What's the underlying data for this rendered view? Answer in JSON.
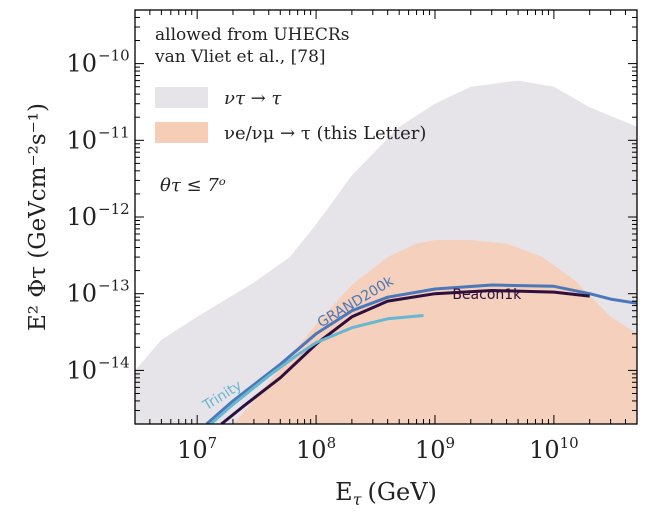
{
  "chart_data": {
    "type": "area",
    "xlabel": "E",
    "xlabel_sub": "τ",
    "xlabel_unit": "(GeV)",
    "ylabel": "E² Φτ (GeVcm⁻²s⁻¹)",
    "x_scale": "log",
    "y_scale": "log",
    "xlim": [
      3000000,
      50000000000
    ],
    "ylim": [
      2e-15,
      5e-10
    ],
    "x_ticks": [
      {
        "value": 10000000,
        "mant": "10",
        "exp": "7"
      },
      {
        "value": 100000000,
        "mant": "10",
        "exp": "8"
      },
      {
        "value": 1000000000,
        "mant": "10",
        "exp": "9"
      },
      {
        "value": 10000000000,
        "mant": "10",
        "exp": "10"
      }
    ],
    "y_ticks": [
      {
        "value": 1e-14,
        "mant": "10",
        "exp": "−14"
      },
      {
        "value": 1e-13,
        "mant": "10",
        "exp": "−13"
      },
      {
        "value": 1e-12,
        "mant": "10",
        "exp": "−12"
      },
      {
        "value": 1e-11,
        "mant": "10",
        "exp": "−11"
      },
      {
        "value": 1e-10,
        "mant": "10",
        "exp": "−10"
      }
    ],
    "annotations": {
      "line1": "allowed from UHECRs",
      "line2": "van Vliet et al., [78]",
      "theta": "θτ ≤ 7ᵒ"
    },
    "legend": [
      {
        "label": "ντ → τ",
        "color": "#e6e4e9"
      },
      {
        "label": "νe/νμ → τ (this Letter)",
        "color": "#f6cdb7"
      }
    ],
    "bands": [
      {
        "name": "ντ → τ",
        "color": "#e6e4e9",
        "upper": [
          [
            3000000,
            1e-14
          ],
          [
            5000000,
            2.5e-14
          ],
          [
            10000000,
            5e-14
          ],
          [
            30000000,
            1.4e-13
          ],
          [
            60000000,
            3e-13
          ],
          [
            100000000,
            8e-13
          ],
          [
            200000000,
            3.5e-12
          ],
          [
            500000000,
            1.5e-11
          ],
          [
            1000000000,
            3e-11
          ],
          [
            2000000000,
            5e-11
          ],
          [
            5000000000,
            6e-11
          ],
          [
            10000000000,
            5e-11
          ],
          [
            20000000000,
            2.7e-11
          ],
          [
            50000000000,
            1.5e-11
          ]
        ],
        "lower": [
          [
            3000000,
            2e-15
          ],
          [
            50000000000,
            2e-15
          ]
        ]
      },
      {
        "name": "νe/νμ → τ (this Letter)",
        "color": "#f6cdb7",
        "upper": [
          [
            20000000,
            2e-15
          ],
          [
            30000000,
            4e-15
          ],
          [
            60000000,
            1.5e-14
          ],
          [
            100000000,
            4e-14
          ],
          [
            200000000,
            1.3e-13
          ],
          [
            400000000,
            3e-13
          ],
          [
            700000000,
            4.5e-13
          ],
          [
            1000000000,
            5e-13
          ],
          [
            2000000000,
            5e-13
          ],
          [
            4000000000,
            4.5e-13
          ],
          [
            8000000000,
            3e-13
          ],
          [
            15000000000,
            1.5e-13
          ],
          [
            30000000000,
            5e-14
          ],
          [
            50000000000,
            3e-14
          ]
        ],
        "lower": [
          [
            20000000,
            2e-15
          ],
          [
            50000000000,
            2e-15
          ]
        ]
      }
    ],
    "series": [
      {
        "name": "GRAND200k",
        "color": "#4a78b8",
        "label_x": 110000000,
        "label_y": 3.6e-14,
        "label_rot": -31,
        "points": [
          [
            12000000,
            2e-15
          ],
          [
            20000000,
            4e-15
          ],
          [
            50000000,
            1.2e-14
          ],
          [
            100000000,
            3e-14
          ],
          [
            200000000,
            6e-14
          ],
          [
            400000000,
            9e-14
          ],
          [
            1000000000,
            1.15e-13
          ],
          [
            3000000000,
            1.3e-13
          ],
          [
            10000000000,
            1.25e-13
          ],
          [
            20000000000,
            1e-13
          ],
          [
            30000000000,
            8.5e-14
          ],
          [
            50000000000,
            7.5e-14
          ]
        ]
      },
      {
        "name": "Beacon1k",
        "color": "#2e0f3e",
        "label_x": 1400000000,
        "label_y": 8.5e-14,
        "label_rot": 0,
        "points": [
          [
            16000000,
            2e-15
          ],
          [
            25000000,
            3.5e-15
          ],
          [
            50000000,
            8e-15
          ],
          [
            100000000,
            2.2e-14
          ],
          [
            200000000,
            5e-14
          ],
          [
            400000000,
            8e-14
          ],
          [
            1000000000,
            1e-13
          ],
          [
            3000000000,
            1.1e-13
          ],
          [
            10000000000,
            1.05e-13
          ],
          [
            20000000000,
            9.3e-14
          ]
        ]
      },
      {
        "name": "Trinity",
        "color": "#67b6d2",
        "label_x": 12000000,
        "label_y": 3e-15,
        "label_rot": -32,
        "points": [
          [
            13000000,
            2e-15
          ],
          [
            20000000,
            3.6e-15
          ],
          [
            40000000,
            8.5e-15
          ],
          [
            70000000,
            1.6e-14
          ],
          [
            100000000,
            2.3e-14
          ],
          [
            200000000,
            3.6e-14
          ],
          [
            400000000,
            4.7e-14
          ],
          [
            800000000,
            5.2e-14
          ]
        ]
      }
    ]
  }
}
